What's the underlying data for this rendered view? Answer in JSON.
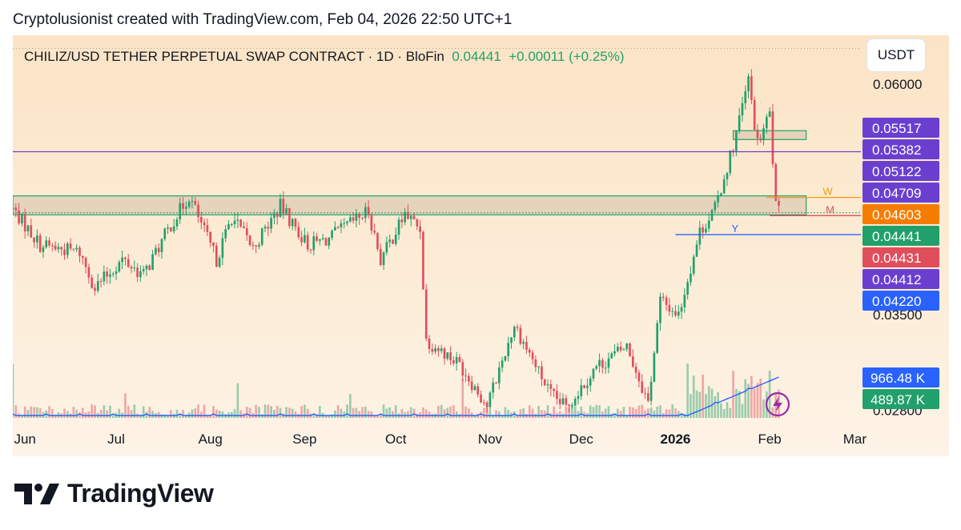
{
  "header": {
    "credit": "Cryptolusionist created with TradingView.com, Feb 04, 2026 22:50 UTC+1",
    "symbol": "CHILIZ/USD TETHER PERPETUAL SWAP CONTRACT · 1D · BloFin",
    "last_price": "0.04441",
    "change": "+0.00011 (+0.25%)",
    "currency_button": "USDT"
  },
  "brand": {
    "name": "TradingView",
    "logo": "tradingview-logo"
  },
  "colors": {
    "up": "#22a06b",
    "down": "#e04e5c",
    "purple": "#6a3fd0",
    "orange": "#f39c12",
    "blue": "#2962ff",
    "volume_ma": "#2962ff"
  },
  "chart_data": {
    "type": "candlestick",
    "timeframe": "1D",
    "y_axis": {
      "scale": "log",
      "ticks": [
        "0.06000",
        "0.03500",
        "0.02800"
      ],
      "ylim": [
        0.0275,
        0.066
      ]
    },
    "x_axis": {
      "labels": [
        "Jun",
        "Jul",
        "Aug",
        "Sep",
        "Oct",
        "Nov",
        "Dec",
        "2026",
        "Feb",
        "Mar"
      ],
      "label_dates": [
        "2025-06-01",
        "2025-07-01",
        "2025-08-01",
        "2025-09-01",
        "2025-10-01",
        "2025-11-01",
        "2025-12-01",
        "2026-01-01",
        "2026-02-01",
        "2026-03-01"
      ],
      "range": [
        "2025-05-28",
        "2026-03-03"
      ]
    },
    "price_labels": [
      {
        "value": "0.05517",
        "color": "#6a3fd0"
      },
      {
        "value": "0.05382",
        "color": "#6a3fd0"
      },
      {
        "value": "0.05122",
        "color": "#6a3fd0"
      },
      {
        "value": "0.04709",
        "color": "#6a3fd0"
      },
      {
        "value": "0.04603",
        "color": "#f57c00"
      },
      {
        "value": "0.04441",
        "color": "#22a06b"
      },
      {
        "value": "0.04431",
        "color": "#e04e5c"
      },
      {
        "value": "0.04412",
        "color": "#6a3fd0"
      },
      {
        "value": "0.04220",
        "color": "#2962ff"
      }
    ],
    "volume_labels": [
      {
        "value": "966.48 K",
        "color": "#2962ff"
      },
      {
        "value": "489.87 K",
        "color": "#22a06b"
      }
    ],
    "levels": [
      {
        "label": "",
        "value": 0.05122,
        "color": "#6a3fd0",
        "from": "2025-05-28"
      },
      {
        "label": "W",
        "value": 0.04603,
        "color": "#f39c12",
        "from": "2026-01-31"
      },
      {
        "label": "M",
        "value": 0.04412,
        "color": "#e04e5c",
        "from": "2026-02-01"
      },
      {
        "label": "Y",
        "value": 0.0422,
        "color": "#2962ff",
        "from": "2026-01-01"
      }
    ],
    "zones": [
      {
        "top": 0.0462,
        "bottom": 0.0442,
        "from": "2025-05-28",
        "to": "2026-02-13",
        "color": "#22a06b"
      },
      {
        "top": 0.0538,
        "bottom": 0.0527,
        "from": "2026-01-20",
        "to": "2026-02-13",
        "color": "#22a06b"
      }
    ],
    "highest_high_reference": 0.0652,
    "last_price": 0.04441,
    "anchors": [
      [
        "2025-05-28",
        0.0448
      ],
      [
        "2025-06-06",
        0.0412
      ],
      [
        "2025-06-19",
        0.0405
      ],
      [
        "2025-06-24",
        0.0373
      ],
      [
        "2025-07-03",
        0.0398
      ],
      [
        "2025-07-10",
        0.0384
      ],
      [
        "2025-07-19",
        0.0432
      ],
      [
        "2025-07-25",
        0.0462
      ],
      [
        "2025-08-03",
        0.0398
      ],
      [
        "2025-08-08",
        0.044
      ],
      [
        "2025-08-15",
        0.0409
      ],
      [
        "2025-08-24",
        0.0451
      ],
      [
        "2025-09-02",
        0.0412
      ],
      [
        "2025-09-09",
        0.0418
      ],
      [
        "2025-09-22",
        0.0446
      ],
      [
        "2025-09-26",
        0.0398
      ],
      [
        "2025-10-04",
        0.0443
      ],
      [
        "2025-10-09",
        0.0428
      ],
      [
        "2025-10-11",
        0.033
      ],
      [
        "2025-10-22",
        0.0312
      ],
      [
        "2025-10-31",
        0.0283
      ],
      [
        "2025-11-09",
        0.0342
      ],
      [
        "2025-11-21",
        0.029
      ],
      [
        "2025-11-26",
        0.0282
      ],
      [
        "2025-12-06",
        0.031
      ],
      [
        "2025-12-16",
        0.0325
      ],
      [
        "2025-12-23",
        0.0285
      ],
      [
        "2025-12-27",
        0.0362
      ],
      [
        "2026-01-02",
        0.035
      ],
      [
        "2026-01-09",
        0.0425
      ],
      [
        "2026-01-14",
        0.0448
      ],
      [
        "2026-01-20",
        0.052
      ],
      [
        "2026-01-25",
        0.0605
      ],
      [
        "2026-01-28",
        0.052
      ],
      [
        "2026-02-01",
        0.056
      ],
      [
        "2026-02-03",
        0.045
      ],
      [
        "2026-02-04",
        0.04441
      ]
    ]
  }
}
